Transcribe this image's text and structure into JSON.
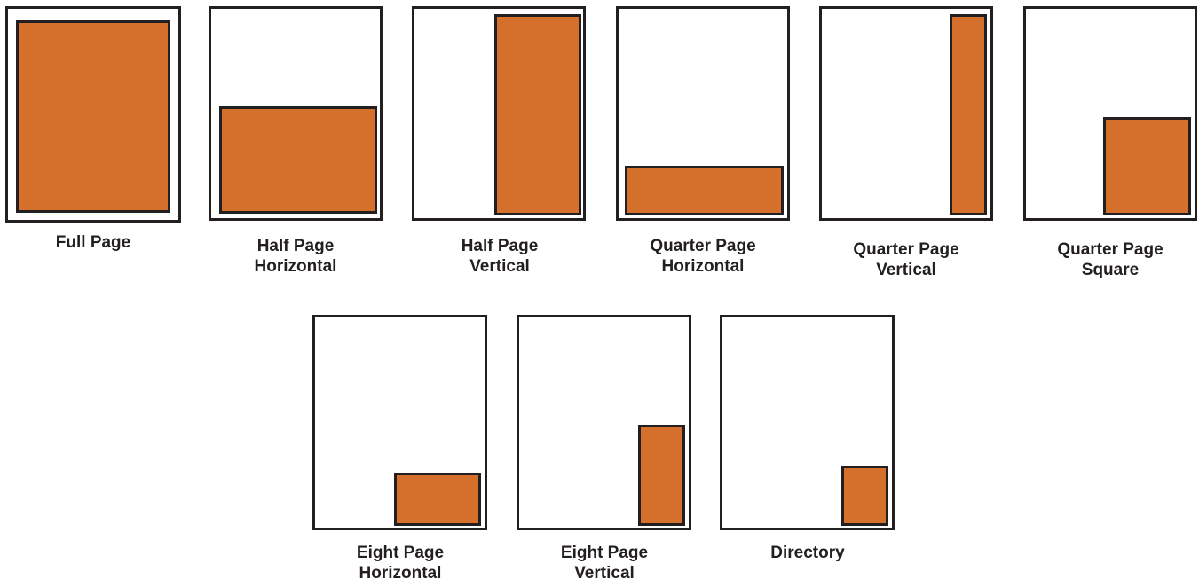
{
  "colors": {
    "ad_fill": "#d4702b",
    "border": "#231f20",
    "page_fill": "#ffffff"
  },
  "layouts": [
    {
      "id": 1,
      "label": "Full Page"
    },
    {
      "id": 2,
      "label": "Half Page\nHorizontal"
    },
    {
      "id": 3,
      "label": "Half Page\nVertical"
    },
    {
      "id": 4,
      "label": "Quarter Page\nHorizontal"
    },
    {
      "id": 5,
      "label": "Quarter Page\nVertical"
    },
    {
      "id": 6,
      "label": "Quarter Page\nSquare"
    },
    {
      "id": 7,
      "label": "Eight Page\nHorizontal"
    },
    {
      "id": 8,
      "label": "Eight Page\nVertical"
    },
    {
      "id": 9,
      "label": "Directory"
    }
  ]
}
